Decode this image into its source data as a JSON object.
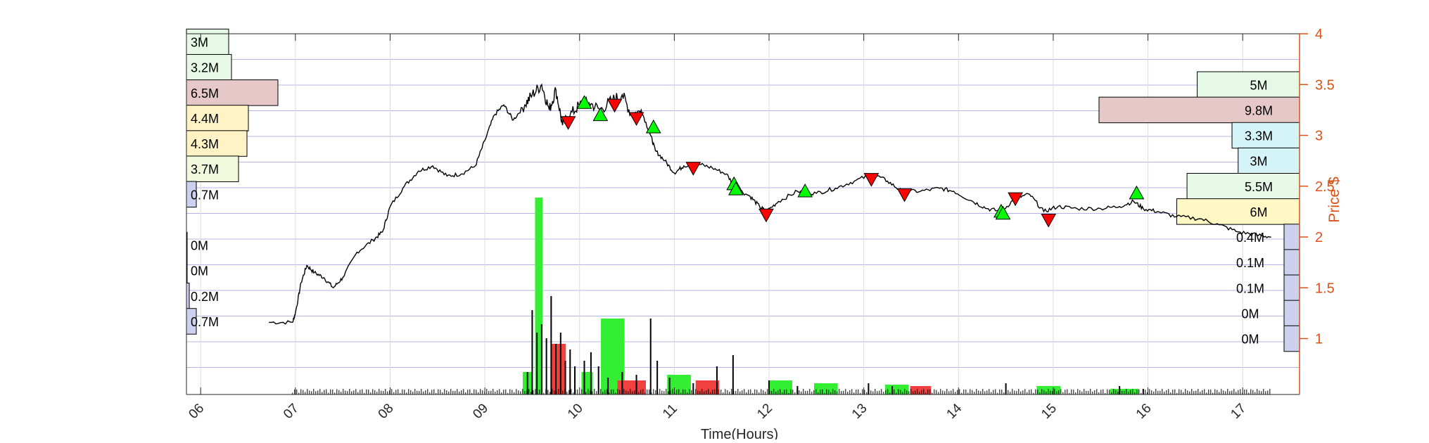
{
  "chart_data": {
    "type": "line",
    "xlabel": "Time(Hours)",
    "ylabel": "Price $",
    "x_ticks": [
      "06",
      "07",
      "08",
      "09",
      "10",
      "11",
      "12",
      "13",
      "14",
      "15",
      "16",
      "17"
    ],
    "x_range": [
      5.85,
      17.6
    ],
    "y_ticks": [
      "1",
      "1.5",
      "2",
      "2.5",
      "3",
      "3.5",
      "4"
    ],
    "ylim": [
      0.45,
      4.0
    ],
    "grid": true,
    "colors": {
      "price": "#000000",
      "right_axis": "#d95319",
      "grid": "#b4b4e6",
      "buy_marker": "#00ff00",
      "sell_marker": "#ff0000",
      "volume_up": "#33ee33",
      "volume_down": "#f04040",
      "volume_spike": "#000000"
    },
    "price_path": [
      [
        6.72,
        1.16
      ],
      [
        6.97,
        1.16
      ],
      [
        7.0,
        1.25
      ],
      [
        7.06,
        1.55
      ],
      [
        7.12,
        1.72
      ],
      [
        7.2,
        1.65
      ],
      [
        7.3,
        1.6
      ],
      [
        7.4,
        1.5
      ],
      [
        7.5,
        1.6
      ],
      [
        7.65,
        1.85
      ],
      [
        7.82,
        1.97
      ],
      [
        7.92,
        2.05
      ],
      [
        8.0,
        2.3
      ],
      [
        8.15,
        2.5
      ],
      [
        8.3,
        2.65
      ],
      [
        8.45,
        2.7
      ],
      [
        8.6,
        2.6
      ],
      [
        8.75,
        2.62
      ],
      [
        8.9,
        2.7
      ],
      [
        9.0,
        2.95
      ],
      [
        9.1,
        3.2
      ],
      [
        9.2,
        3.3
      ],
      [
        9.3,
        3.15
      ],
      [
        9.42,
        3.3
      ],
      [
        9.5,
        3.4
      ],
      [
        9.6,
        3.5
      ],
      [
        9.68,
        3.25
      ],
      [
        9.75,
        3.45
      ],
      [
        9.82,
        3.1
      ],
      [
        9.9,
        3.2
      ],
      [
        10.0,
        3.3
      ],
      [
        10.1,
        3.32
      ],
      [
        10.22,
        3.25
      ],
      [
        10.35,
        3.35
      ],
      [
        10.45,
        3.4
      ],
      [
        10.55,
        3.2
      ],
      [
        10.65,
        3.25
      ],
      [
        10.75,
        3.0
      ],
      [
        10.8,
        2.85
      ],
      [
        10.9,
        2.75
      ],
      [
        11.0,
        2.63
      ],
      [
        11.1,
        2.7
      ],
      [
        11.25,
        2.72
      ],
      [
        11.4,
        2.68
      ],
      [
        11.55,
        2.62
      ],
      [
        11.65,
        2.48
      ],
      [
        11.8,
        2.4
      ],
      [
        11.9,
        2.3
      ],
      [
        11.97,
        2.25
      ],
      [
        12.1,
        2.35
      ],
      [
        12.3,
        2.45
      ],
      [
        12.5,
        2.43
      ],
      [
        12.7,
        2.48
      ],
      [
        12.9,
        2.55
      ],
      [
        13.1,
        2.62
      ],
      [
        13.25,
        2.55
      ],
      [
        13.4,
        2.45
      ],
      [
        13.6,
        2.45
      ],
      [
        13.8,
        2.48
      ],
      [
        13.95,
        2.45
      ],
      [
        14.15,
        2.35
      ],
      [
        14.3,
        2.28
      ],
      [
        14.45,
        2.25
      ],
      [
        14.6,
        2.38
      ],
      [
        14.75,
        2.42
      ],
      [
        14.9,
        2.25
      ],
      [
        15.05,
        2.3
      ],
      [
        15.25,
        2.28
      ],
      [
        15.5,
        2.28
      ],
      [
        15.7,
        2.3
      ],
      [
        15.85,
        2.35
      ],
      [
        15.95,
        2.28
      ],
      [
        16.1,
        2.25
      ],
      [
        16.3,
        2.2
      ],
      [
        16.55,
        2.18
      ],
      [
        16.75,
        2.12
      ],
      [
        16.95,
        2.05
      ],
      [
        17.15,
        2.02
      ],
      [
        17.3,
        2.0
      ]
    ],
    "buy_markers": [
      [
        10.05,
        3.32
      ],
      [
        10.22,
        3.2
      ],
      [
        10.78,
        3.08
      ],
      [
        11.63,
        2.52
      ],
      [
        11.65,
        2.47
      ],
      [
        12.38,
        2.45
      ],
      [
        14.45,
        2.25
      ],
      [
        14.47,
        2.23
      ],
      [
        15.88,
        2.43
      ]
    ],
    "sell_markers": [
      [
        9.88,
        3.13
      ],
      [
        10.37,
        3.3
      ],
      [
        10.6,
        3.17
      ],
      [
        11.2,
        2.68
      ],
      [
        11.97,
        2.22
      ],
      [
        13.08,
        2.57
      ],
      [
        13.43,
        2.42
      ],
      [
        14.6,
        2.38
      ],
      [
        14.95,
        2.17
      ]
    ],
    "volume_bars": [
      {
        "x": 9.45,
        "w": 0.1,
        "h": 0.08,
        "dir": "up"
      },
      {
        "x": 9.57,
        "w": 0.08,
        "h": 0.7,
        "dir": "up"
      },
      {
        "x": 9.78,
        "w": 0.15,
        "h": 0.18,
        "dir": "down"
      },
      {
        "x": 10.08,
        "w": 0.12,
        "h": 0.08,
        "dir": "up"
      },
      {
        "x": 10.35,
        "w": 0.25,
        "h": 0.27,
        "dir": "up"
      },
      {
        "x": 10.55,
        "w": 0.3,
        "h": 0.05,
        "dir": "down"
      },
      {
        "x": 11.05,
        "w": 0.25,
        "h": 0.07,
        "dir": "up"
      },
      {
        "x": 11.35,
        "w": 0.25,
        "h": 0.05,
        "dir": "down"
      },
      {
        "x": 12.12,
        "w": 0.25,
        "h": 0.05,
        "dir": "up"
      },
      {
        "x": 12.6,
        "w": 0.25,
        "h": 0.04,
        "dir": "up"
      },
      {
        "x": 13.35,
        "w": 0.25,
        "h": 0.035,
        "dir": "up"
      },
      {
        "x": 13.6,
        "w": 0.22,
        "h": 0.03,
        "dir": "down"
      },
      {
        "x": 14.95,
        "w": 0.25,
        "h": 0.03,
        "dir": "up"
      },
      {
        "x": 15.75,
        "w": 0.3,
        "h": 0.02,
        "dir": "up"
      }
    ],
    "volume_spikes": [
      [
        9.45,
        0.08
      ],
      [
        9.5,
        0.3
      ],
      [
        9.55,
        0.22
      ],
      [
        9.6,
        0.25
      ],
      [
        9.65,
        0.2
      ],
      [
        9.7,
        0.35
      ],
      [
        9.75,
        0.18
      ],
      [
        9.8,
        0.22
      ],
      [
        9.85,
        0.12
      ],
      [
        9.9,
        0.16
      ],
      [
        9.95,
        0.1
      ],
      [
        10.05,
        0.12
      ],
      [
        10.12,
        0.15
      ],
      [
        10.2,
        0.1
      ],
      [
        10.3,
        0.06
      ],
      [
        10.45,
        0.08
      ],
      [
        10.6,
        0.07
      ],
      [
        10.75,
        0.27
      ],
      [
        10.82,
        0.12
      ],
      [
        10.95,
        0.06
      ],
      [
        11.2,
        0.04
      ],
      [
        11.45,
        0.1
      ],
      [
        11.62,
        0.14
      ],
      [
        12.0,
        0.05
      ],
      [
        12.3,
        0.03
      ],
      [
        13.05,
        0.04
      ],
      [
        13.3,
        0.03
      ],
      [
        14.5,
        0.04
      ],
      [
        15.7,
        0.03
      ],
      [
        15.95,
        0.02
      ]
    ],
    "left_profile": [
      {
        "label": "3M",
        "price": 3.92,
        "value": 3.0,
        "color": "#e6f9e6"
      },
      {
        "label": "3.2M",
        "price": 3.67,
        "value": 3.2,
        "color": "#e6f9e6"
      },
      {
        "label": "6.5M",
        "price": 3.42,
        "value": 6.5,
        "color": "#e6c8c8"
      },
      {
        "label": "4.4M",
        "price": 3.17,
        "value": 4.4,
        "color": "#fff2c4"
      },
      {
        "label": "4.3M",
        "price": 2.92,
        "value": 4.3,
        "color": "#fff2c4"
      },
      {
        "label": "3.7M",
        "price": 2.67,
        "value": 3.7,
        "color": "#f1f8dc"
      },
      {
        "label": "0.7M",
        "price": 2.42,
        "value": 0.7,
        "color": "#cdd0ee"
      },
      {
        "label": "0M",
        "price": 1.92,
        "value": 0.0,
        "color": "#cdd0ee"
      },
      {
        "label": "0M",
        "price": 1.67,
        "value": 0.0,
        "color": "#cdd0ee"
      },
      {
        "label": "0.2M",
        "price": 1.42,
        "value": 0.2,
        "color": "#cdd0ee"
      },
      {
        "label": "0.7M",
        "price": 1.17,
        "value": 0.7,
        "color": "#cdd0ee"
      }
    ],
    "right_profile": [
      {
        "label": "5M",
        "price": 3.5,
        "value": 5.0,
        "color": "#e6f9e6"
      },
      {
        "label": "9.8M",
        "price": 3.25,
        "value": 9.8,
        "color": "#e6c8c8"
      },
      {
        "label": "3.3M",
        "price": 3.0,
        "value": 3.3,
        "color": "#d4f4f8"
      },
      {
        "label": "3M",
        "price": 2.75,
        "value": 3.0,
        "color": "#d4f4f8"
      },
      {
        "label": "5.5M",
        "price": 2.5,
        "value": 5.5,
        "color": "#e6f9e6"
      },
      {
        "label": "6M",
        "price": 2.25,
        "value": 6.0,
        "color": "#fff8c4"
      },
      {
        "label": "0.4M",
        "price": 2.0,
        "value": 0.4,
        "color": "#cdd0ee"
      },
      {
        "label": "0.1M",
        "price": 1.75,
        "value": 0.1,
        "color": "#cdd0ee"
      },
      {
        "label": "0.1M",
        "price": 1.5,
        "value": 0.1,
        "color": "#cdd0ee"
      },
      {
        "label": "0M",
        "price": 1.25,
        "value": 0.0,
        "color": "#cdd0ee"
      },
      {
        "label": "0M",
        "price": 1.0,
        "value": 0.0,
        "color": "#cdd0ee"
      }
    ]
  }
}
